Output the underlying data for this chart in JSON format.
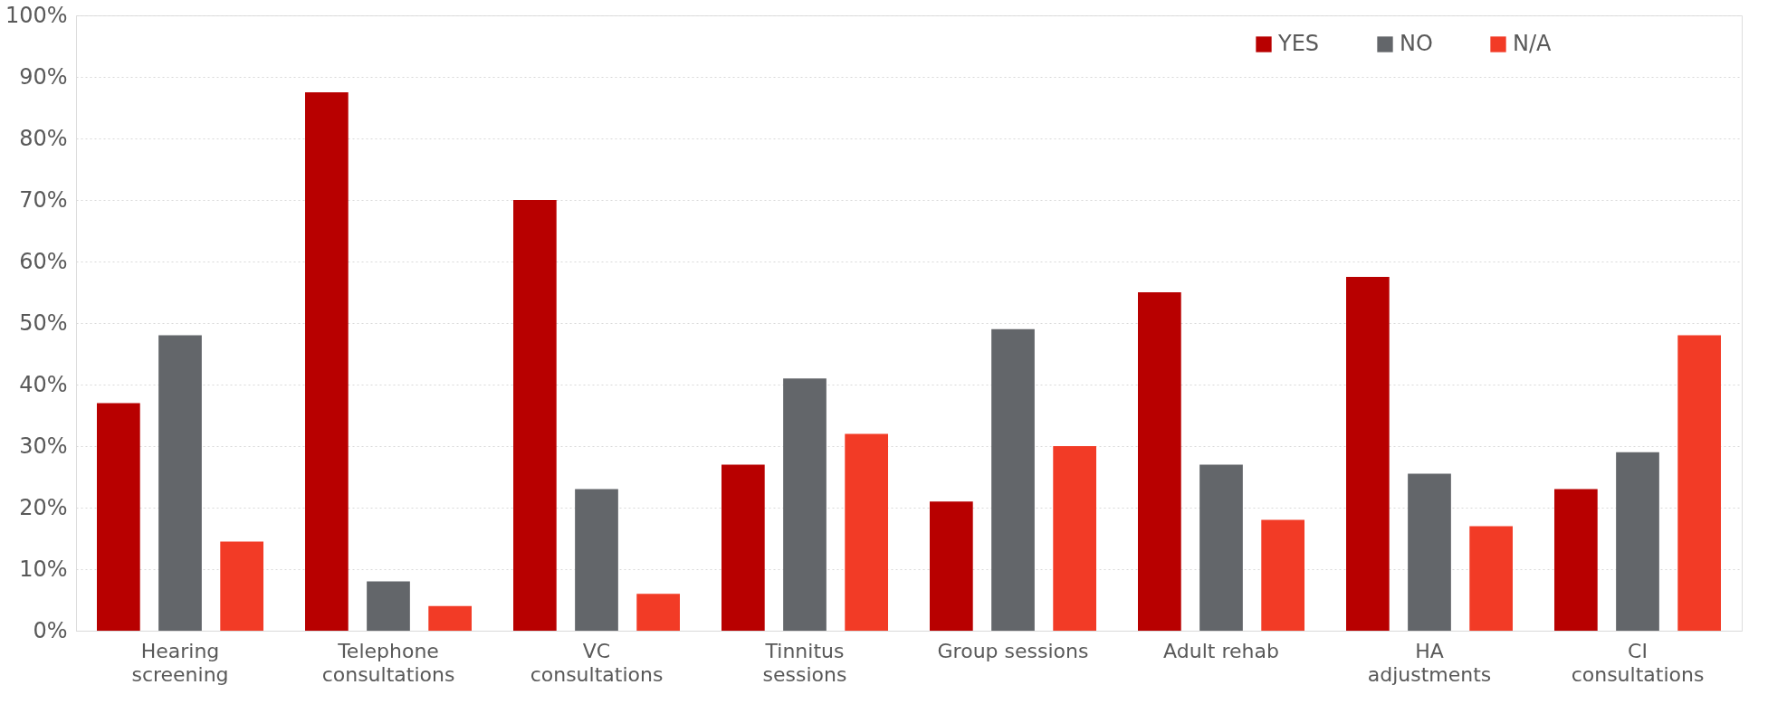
{
  "chart_data": {
    "type": "bar",
    "categories": [
      "Hearing screening",
      "Telephone consultations",
      "VC consultations",
      "Tinnitus sessions",
      "Group sessions",
      "Adult rehab",
      "HA adjustments",
      "CI consultations"
    ],
    "series": [
      {
        "name": "YES",
        "color": "#b80000",
        "values": [
          37,
          87.5,
          70,
          27,
          21,
          55,
          57.5,
          23
        ]
      },
      {
        "name": "NO",
        "color": "#63666a",
        "values": [
          48,
          8,
          23,
          41,
          49,
          27,
          25.5,
          29
        ]
      },
      {
        "name": "N/A",
        "color": "#f23b26",
        "values": [
          14.5,
          4,
          6,
          32,
          30,
          18,
          17,
          48
        ]
      }
    ],
    "ylim": [
      0,
      100
    ],
    "yticks": [
      {
        "value": 0,
        "label": "0%"
      },
      {
        "value": 10,
        "label": "10%"
      },
      {
        "value": 20,
        "label": "20%"
      },
      {
        "value": 30,
        "label": "30%"
      },
      {
        "value": 40,
        "label": "40%"
      },
      {
        "value": 50,
        "label": "50%"
      },
      {
        "value": 60,
        "label": "60%"
      },
      {
        "value": 70,
        "label": "70%"
      },
      {
        "value": 80,
        "label": "80%"
      },
      {
        "value": 90,
        "label": "90%"
      },
      {
        "value": 100,
        "label": "100%"
      }
    ],
    "grid": "y",
    "legend": "top right"
  }
}
